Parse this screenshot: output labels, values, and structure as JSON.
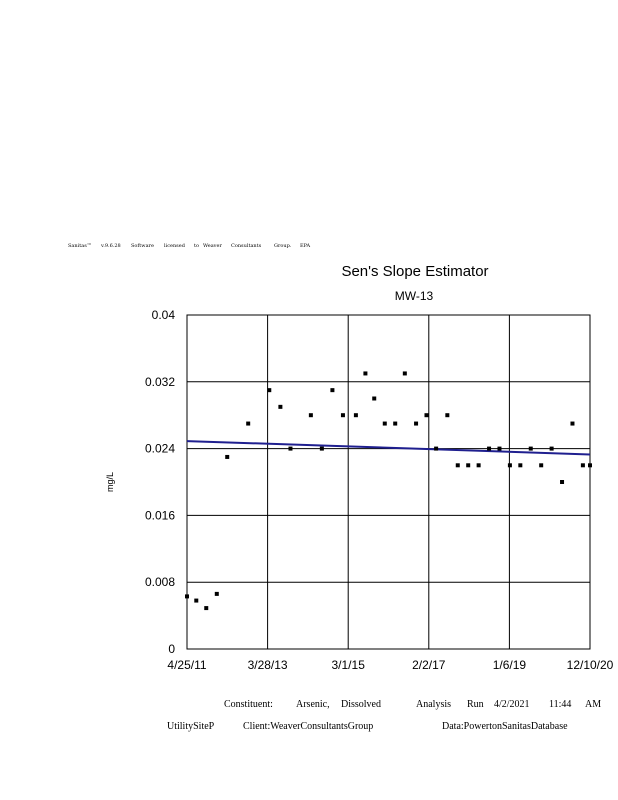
{
  "header_line": {
    "words": [
      "Sanitas™",
      "v.9.6.28",
      "Software",
      "licensed",
      "to",
      "Weaver",
      "Consultants",
      "Group.",
      "EPA"
    ]
  },
  "chart_data": {
    "type": "scatter",
    "title": "Sen's Slope Estimator",
    "subtitle": "MW-13",
    "xlabel": "",
    "ylabel": "mg/L",
    "x_is_date": true,
    "xlim": [
      "2011-04-25",
      "2020-12-10"
    ],
    "ylim": [
      0,
      0.04
    ],
    "x_tick_labels": [
      "4/25/11",
      "3/28/13",
      "3/1/15",
      "2/2/17",
      "1/6/19",
      "12/10/20"
    ],
    "y_tick_labels": [
      "0",
      "0.008",
      "0.016",
      "0.024",
      "0.032",
      "0.04"
    ],
    "y_ticks": [
      0,
      0.008,
      0.016,
      0.024,
      0.032,
      0.04
    ],
    "grid": true,
    "marker_color": "#000000",
    "trend_color": "#1f1f8f",
    "series": [
      {
        "points": [
          [
            "2011-04-25",
            0.0063
          ],
          [
            "2011-07-15",
            0.0058
          ],
          [
            "2011-10-10",
            0.0049
          ],
          [
            "2012-01-10",
            0.0066
          ],
          [
            "2012-04-10",
            0.023
          ],
          [
            "2012-10-10",
            0.027
          ],
          [
            "2013-04-12",
            0.031
          ],
          [
            "2013-07-18",
            0.029
          ],
          [
            "2013-10-14",
            0.024
          ],
          [
            "2014-04-10",
            0.028
          ],
          [
            "2014-07-15",
            0.024
          ],
          [
            "2014-10-15",
            0.031
          ],
          [
            "2015-01-15",
            0.028
          ],
          [
            "2015-05-08",
            0.028
          ],
          [
            "2015-07-30",
            0.033
          ],
          [
            "2015-10-15",
            0.03
          ],
          [
            "2016-01-15",
            0.027
          ],
          [
            "2016-04-15",
            0.027
          ],
          [
            "2016-07-08",
            0.033
          ],
          [
            "2016-10-14",
            0.027
          ],
          [
            "2017-01-13",
            0.028
          ],
          [
            "2017-04-07",
            0.024
          ],
          [
            "2017-07-14",
            0.028
          ],
          [
            "2017-10-13",
            0.022
          ],
          [
            "2018-01-12",
            0.022
          ],
          [
            "2018-04-13",
            0.022
          ],
          [
            "2018-07-13",
            0.024
          ],
          [
            "2018-10-12",
            0.024
          ],
          [
            "2019-01-11",
            0.022
          ],
          [
            "2019-04-12",
            0.022
          ],
          [
            "2019-07-12",
            0.024
          ],
          [
            "2019-10-11",
            0.022
          ],
          [
            "2020-01-10",
            0.024
          ],
          [
            "2020-04-10",
            0.02
          ],
          [
            "2020-07-10",
            0.027
          ],
          [
            "2020-10-09",
            0.022
          ],
          [
            "2020-12-10",
            0.022
          ]
        ]
      }
    ],
    "trend_line": {
      "start": [
        "2011-04-25",
        0.0249
      ],
      "end": [
        "2020-12-10",
        0.0233
      ]
    }
  },
  "footer": {
    "constituent_label": "Constituent:",
    "constituent_value": "Arsenic,",
    "constituent_value2": "Dissolved",
    "analysis_label": "Analysis",
    "run_label": "Run",
    "run_date": "4/2/2021",
    "run_time": "11:44",
    "run_ampm": "AM",
    "site": "UtilitySiteP",
    "client": "Client:WeaverConsultantsGroup",
    "data": "Data:PowertonSanitasDatabase"
  }
}
